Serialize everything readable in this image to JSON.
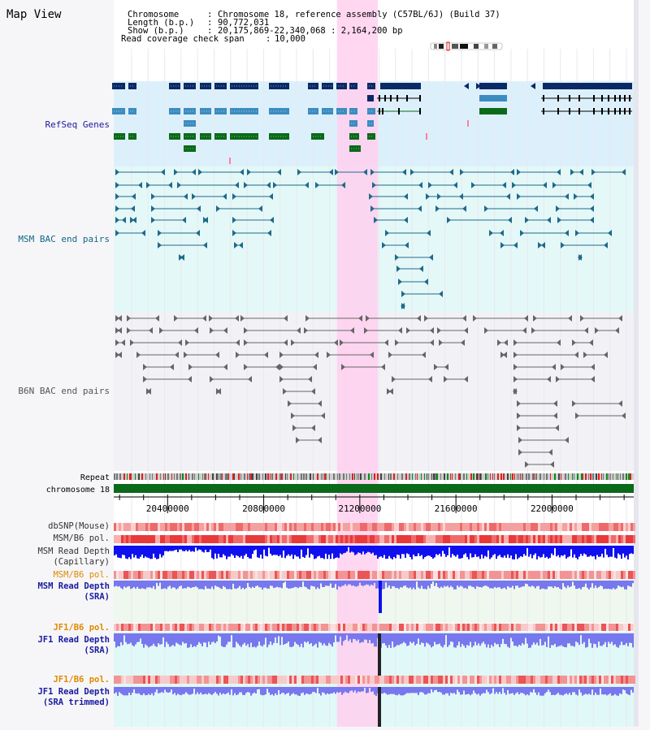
{
  "panel_title": "Map View",
  "header": [
    {
      "key": "Chromosome    ",
      "value": "Chromosome 18, reference assembly (C57BL/6J) (Build 37)"
    },
    {
      "key": "Length (b.p.)",
      "value": "90,772,031"
    },
    {
      "key": " Show (b.p.) ",
      "value": "20,175,869-22,340,068 : 2,164,200 bp"
    },
    {
      "key": "Read coverage check span",
      "value": "10,000"
    }
  ],
  "tracks": {
    "refseq": {
      "label": "RefSeq Genes",
      "color": "#1a1aa0"
    },
    "msm_bac": {
      "label": "MSM BAC end pairs",
      "color": "#116688"
    },
    "b6n_bac": {
      "label": "B6N BAC end pairs",
      "color": "#555555"
    },
    "repeat": {
      "label": "Repeat"
    },
    "chromosome": {
      "label": "chromosome 18"
    },
    "dbsnp": {
      "label": "dbSNP(Mouse)"
    },
    "msm_pol": {
      "label": "MSM/B6 pol."
    },
    "msm_cap": {
      "label1": "MSM Read Depth",
      "label2": "(Capillary)"
    },
    "msm_pol2": {
      "label": "MSM/B6 pol.",
      "color": "#e08a00"
    },
    "msm_sra": {
      "label1": "MSM Read Depth",
      "label2": "(SRA)",
      "color": "#1a1aa0"
    },
    "jf1_pol": {
      "label": "JF1/B6 pol.",
      "color": "#e08a00"
    },
    "jf1_sra": {
      "label1": "JF1 Read Depth",
      "label2": "(SRA)",
      "color": "#1a1aa0"
    },
    "jf1_pol2": {
      "label": "JF1/B6 pol.",
      "color": "#e08a00"
    },
    "jf1_trim": {
      "label1": "JF1 Read Depth",
      "label2": "(SRA trimmed)",
      "color": "#1a1aa0"
    }
  },
  "axis_ticks": [
    "20400000",
    "20800000",
    "21200000",
    "21600000",
    "22000000"
  ],
  "axis_tick_values": [
    20400000,
    20800000,
    21200000,
    21600000,
    22000000
  ],
  "view_range": [
    20175869,
    22340068
  ],
  "highlight_range": [
    21105000,
    21275000
  ],
  "colors": {
    "refseq_dark": "#0a2a66",
    "refseq_mid": "#3c8cc0",
    "refseq_green": "#0a6a1a",
    "msm": "#1f6a8a",
    "b6n": "#666666",
    "highlight": "#ffd0ef",
    "chrom": "#0a6a1a",
    "depth_dark": "#1010ee",
    "depth_light": "#7777ee"
  }
}
